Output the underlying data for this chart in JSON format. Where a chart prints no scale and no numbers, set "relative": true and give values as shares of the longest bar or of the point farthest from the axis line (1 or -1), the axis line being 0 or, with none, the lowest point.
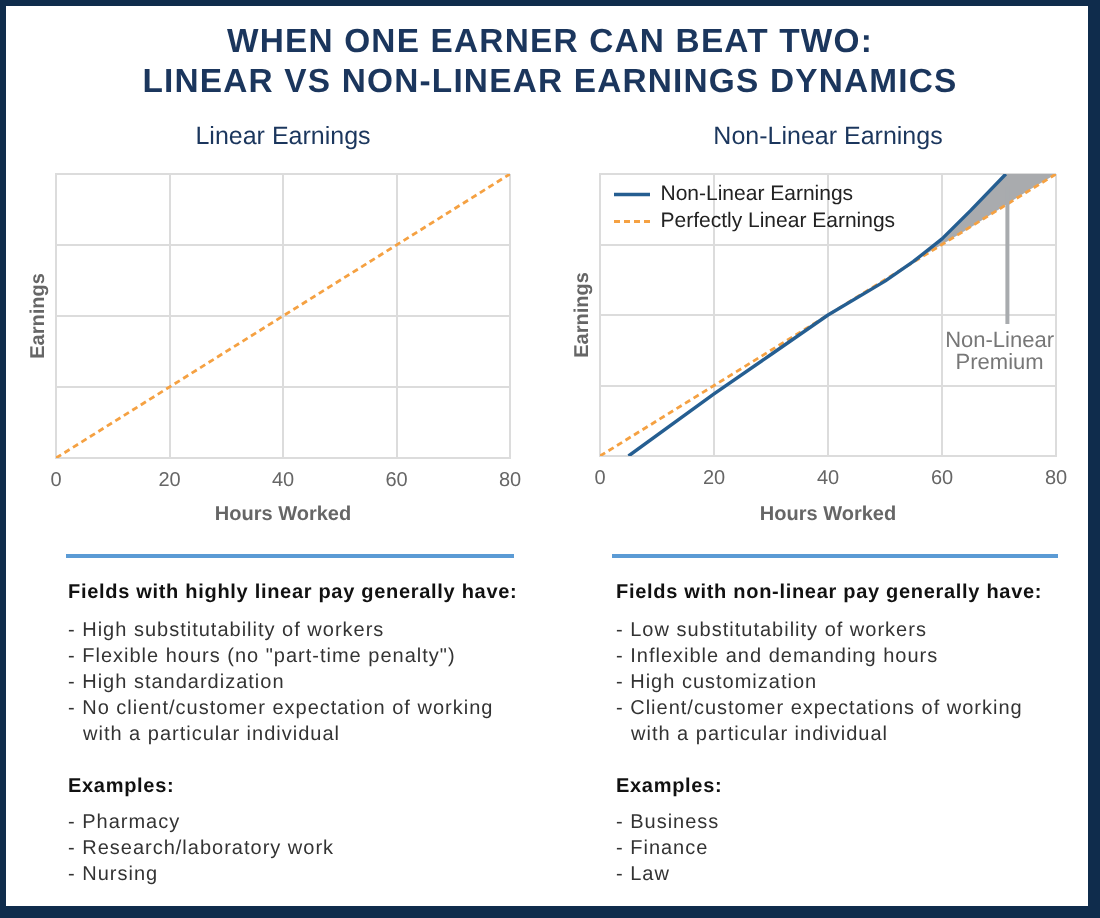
{
  "chart_data": [
    {
      "type": "other",
      "title": "WHEN ONE EARNER CAN BEAT TWO:\nLINEAR VS NON-LINEAR EARNINGS DYNAMICS"
    },
    {
      "type": "line",
      "title": "Linear Earnings",
      "xlabel": "Hours Worked",
      "ylabel": "Earnings",
      "relative": true,
      "x": [
        0,
        80
      ],
      "series": [
        {
          "color": "#f5a142",
          "values": [
            0,
            1
          ]
        }
      ],
      "xlim": [
        0,
        80
      ],
      "xticks": [
        0,
        20,
        40,
        60,
        80
      ],
      "grid": true,
      "line_style": "dashed"
    },
    {
      "type": "line",
      "title": "Non-Linear Earnings",
      "xlabel": "Hours Worked",
      "ylabel": "Earnings",
      "relative": true,
      "xlim": [
        0,
        80
      ],
      "xticks": [
        0,
        20,
        40,
        60,
        80
      ],
      "grid": true,
      "legend": "top left",
      "line_style": "solid",
      "series": [
        {
          "name": "Non-Linear Earnings",
          "color": "#255e91",
          "x": [
            5,
            20,
            30,
            40,
            50,
            55,
            60,
            65,
            71.2,
            75,
            80
          ],
          "values": [
            0,
            0.22,
            0.36,
            0.5,
            0.62,
            0.69,
            0.77,
            0.87,
            1,
            null,
            null
          ],
          "lower": [
            null,
            null,
            null,
            null,
            null,
            0.69,
            0.75,
            0.81,
            0.89,
            0.94,
            1
          ],
          "upper": [
            null,
            null,
            null,
            null,
            null,
            0.69,
            0.77,
            0.87,
            1,
            1,
            1
          ]
        },
        {
          "name": "Perfectly Linear Earnings",
          "color": "#f5a142",
          "x": [
            0,
            80
          ],
          "values": [
            0,
            1
          ],
          "line_style": "dashed"
        }
      ],
      "annotations": [
        "Non-Linear Premium"
      ]
    },
    {
      "type": "other",
      "title": "Fields with highly linear pay generally have:",
      "annotations": [
        "- High substitutability of workers",
        "- Flexible hours (no \"part-time penalty\")",
        "- High standardization",
        "- No client/customer expectation of working with a particular individual"
      ]
    },
    {
      "type": "other",
      "title": "Examples:",
      "annotations": [
        "- Pharmacy",
        "- Research/laboratory work",
        "- Nursing"
      ]
    },
    {
      "type": "other",
      "title": "Fields with non-linear pay generally have:",
      "annotations": [
        "- Low substitutability of workers",
        "- Inflexible and demanding hours",
        "- High customization",
        "- Client/customer expectations of working with a particular individual"
      ]
    },
    {
      "type": "other",
      "title": "Examples:",
      "annotations": [
        "- Business",
        "- Finance",
        "- Law"
      ]
    }
  ]
}
